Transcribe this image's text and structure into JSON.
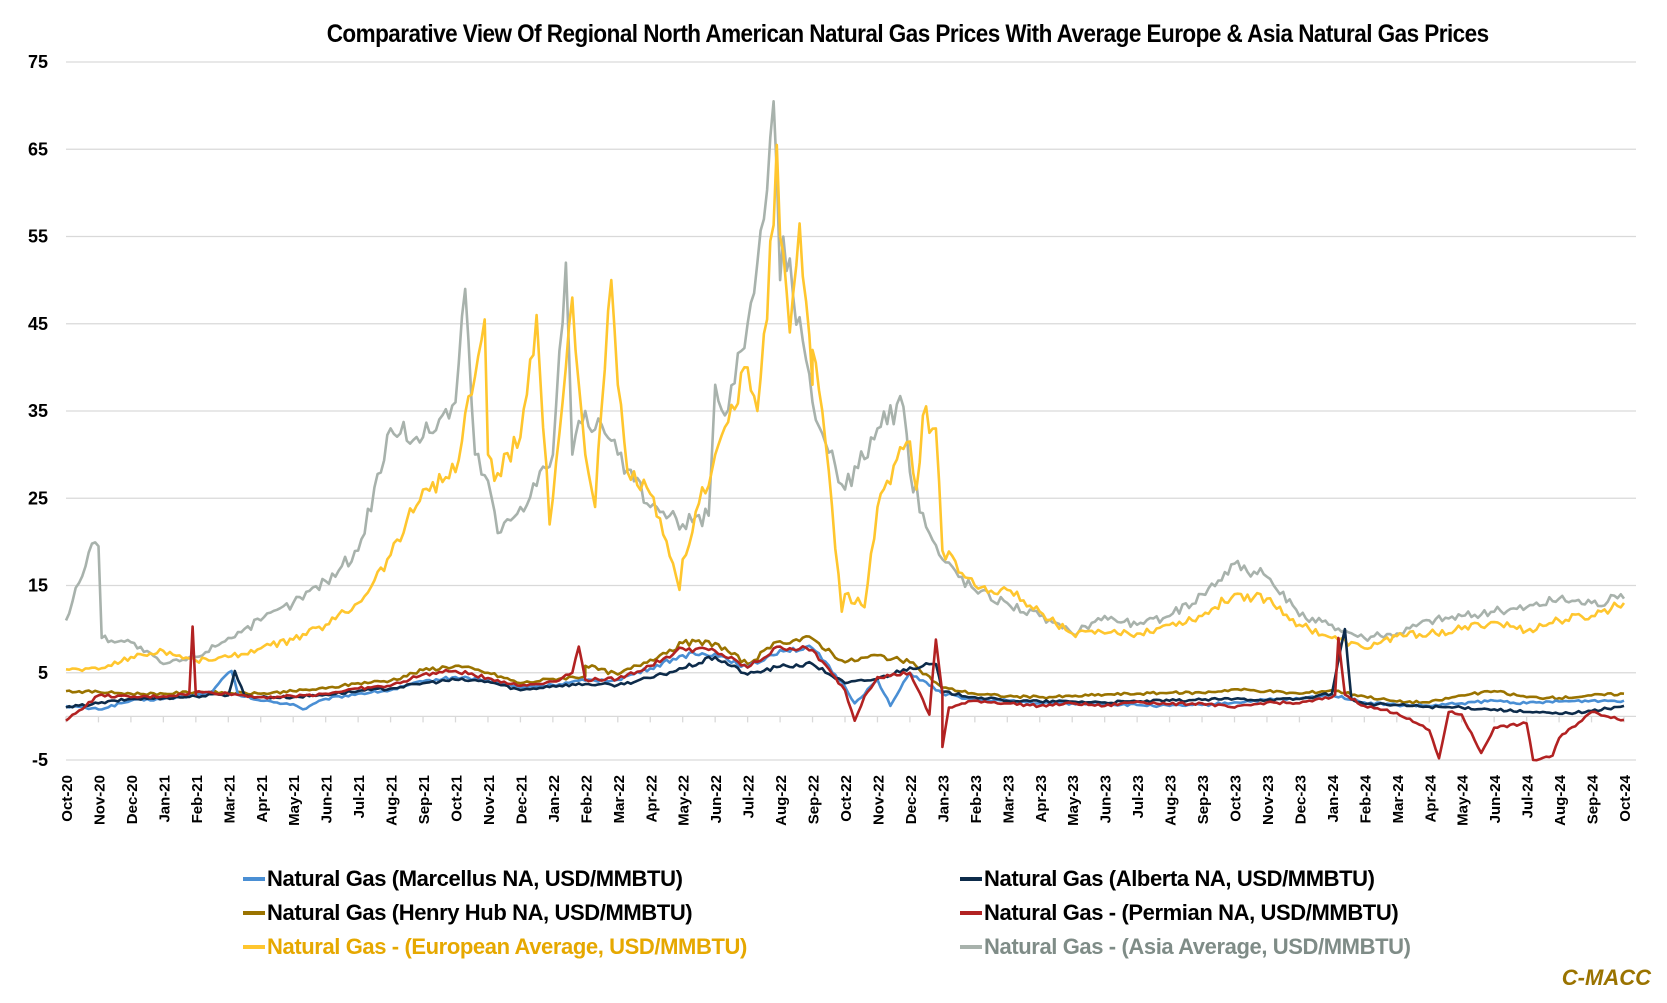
{
  "chart_data": {
    "type": "line",
    "title": "Comparative View Of Regional North American Natural Gas Prices With Average Europe & Asia Natural Gas Prices",
    "xlabel": "",
    "ylabel": "",
    "ylim": [
      -5,
      75
    ],
    "yticks": [
      75,
      65,
      55,
      45,
      35,
      25,
      15,
      5,
      -5
    ],
    "grid": true,
    "legend_position": "bottom",
    "source": "C-MACC",
    "x": [
      "Oct-20",
      "Nov-20",
      "Dec-20",
      "Jan-21",
      "Feb-21",
      "Mar-21",
      "Apr-21",
      "May-21",
      "Jun-21",
      "Jul-21",
      "Aug-21",
      "Sep-21",
      "Oct-21",
      "Nov-21",
      "Dec-21",
      "Jan-22",
      "Feb-22",
      "Mar-22",
      "Apr-22",
      "May-22",
      "Jun-22",
      "Jul-22",
      "Aug-22",
      "Sep-22",
      "Oct-22",
      "Nov-22",
      "Dec-22",
      "Jan-23",
      "Feb-23",
      "Mar-23",
      "Apr-23",
      "May-23",
      "Jun-23",
      "Jul-23",
      "Aug-23",
      "Sep-23",
      "Oct-23",
      "Nov-23",
      "Dec-23",
      "Jan-24",
      "Feb-24",
      "Mar-24",
      "Apr-24",
      "May-24",
      "Jun-24",
      "Jul-24",
      "Aug-24",
      "Sep-24",
      "Oct-24"
    ],
    "series": [
      {
        "name": "Natural Gas (Marcellus NA, USD/MMBTU)",
        "color": "#4a8fd4",
        "text_color": "#000000",
        "values": [
          1.2,
          0.8,
          1.8,
          2.0,
          2.4,
          5.0,
          1.8,
          1.4,
          2.0,
          2.6,
          3.0,
          4.0,
          4.5,
          4.2,
          3.3,
          3.6,
          4.1,
          4.2,
          5.5,
          7.0,
          7.2,
          5.6,
          7.6,
          7.8,
          3.4,
          4.2,
          5.0,
          2.6,
          1.9,
          1.8,
          1.5,
          1.5,
          1.4,
          1.3,
          1.2,
          1.3,
          1.6,
          1.9,
          2.0,
          2.5,
          1.6,
          1.3,
          1.2,
          1.5,
          1.8,
          1.5,
          1.7,
          1.8,
          1.8
        ],
        "extra_points": [
          [
            4.5,
            2.8
          ],
          [
            5.1,
            5.2
          ],
          [
            5.3,
            2.5
          ],
          [
            7.3,
            0.8
          ],
          [
            24.3,
            1.5
          ],
          [
            25.4,
            1.2
          ]
        ]
      },
      {
        "name": "Natural Gas (Alberta NA, USD/MMBTU)",
        "color": "#0d2b4a",
        "text_color": "#000000",
        "values": [
          1.0,
          1.5,
          2.0,
          2.1,
          2.3,
          2.4,
          2.2,
          2.2,
          2.5,
          2.9,
          3.2,
          3.8,
          4.2,
          4.0,
          3.0,
          3.5,
          3.7,
          3.6,
          4.4,
          5.5,
          6.8,
          4.8,
          5.7,
          6.0,
          3.8,
          4.3,
          5.6,
          2.8,
          2.2,
          1.8,
          1.7,
          1.7,
          1.6,
          1.7,
          1.8,
          1.9,
          2.0,
          1.9,
          2.0,
          2.6,
          1.4,
          1.3,
          1.1,
          1.0,
          0.8,
          0.5,
          0.3,
          0.6,
          1.2
        ],
        "extra_points": [
          [
            4.7,
            2.5
          ],
          [
            5.2,
            5.2
          ],
          [
            5.5,
            2.4
          ],
          [
            26.8,
            6.0
          ],
          [
            39.4,
            10.0
          ],
          [
            39.6,
            2.0
          ]
        ]
      },
      {
        "name": "Natural Gas (Henry Hub NA, USD/MMBTU)",
        "color": "#9a7300",
        "text_color": "#000000",
        "values": [
          2.9,
          2.8,
          2.6,
          2.6,
          2.8,
          2.7,
          2.6,
          2.9,
          3.2,
          3.8,
          4.1,
          5.3,
          5.8,
          5.0,
          3.8,
          4.3,
          4.6,
          4.8,
          6.5,
          8.4,
          8.4,
          6.0,
          8.6,
          8.9,
          6.2,
          7.0,
          6.2,
          3.3,
          2.6,
          2.3,
          2.2,
          2.3,
          2.5,
          2.6,
          2.7,
          2.7,
          3.1,
          2.9,
          2.6,
          3.0,
          2.3,
          1.7,
          1.6,
          2.4,
          2.9,
          2.2,
          2.1,
          2.4,
          2.6
        ],
        "extra_points": [
          [
            16.0,
            5.8
          ],
          [
            31.0,
            2.3
          ]
        ]
      },
      {
        "name": "Natural Gas - (Permian NA, USD/MMBTU)",
        "color": "#b22222",
        "text_color": "#000000",
        "values": [
          -0.5,
          2.4,
          2.2,
          2.3,
          2.5,
          2.6,
          2.2,
          2.3,
          2.6,
          3.2,
          3.5,
          4.8,
          5.2,
          4.4,
          3.5,
          4.0,
          4.2,
          4.3,
          5.8,
          7.8,
          7.5,
          5.6,
          8.0,
          7.6,
          3.0,
          4.5,
          5.0,
          2.6,
          1.8,
          1.5,
          1.2,
          1.5,
          1.2,
          1.7,
          1.4,
          1.5,
          1.0,
          1.6,
          1.5,
          2.2,
          1.2,
          0.4,
          -1.6,
          0.2,
          -1.3,
          -0.8,
          -2.5,
          0.5,
          -0.4
        ],
        "extra_points": [
          [
            3.8,
            2.6
          ],
          [
            3.9,
            10.3
          ],
          [
            4.0,
            2.8
          ],
          [
            15.6,
            5.0
          ],
          [
            15.8,
            8.0
          ],
          [
            16.0,
            4.2
          ],
          [
            24.3,
            -0.5
          ],
          [
            24.6,
            2.3
          ],
          [
            26.6,
            0.2
          ],
          [
            26.8,
            8.8
          ],
          [
            27.0,
            -3.5
          ],
          [
            27.2,
            1.0
          ],
          [
            39.1,
            2.5
          ],
          [
            39.2,
            9.0
          ],
          [
            39.4,
            2.5
          ],
          [
            42.3,
            -4.8
          ],
          [
            42.6,
            0.5
          ],
          [
            43.6,
            -4.2
          ],
          [
            45.2,
            -5.0
          ],
          [
            45.8,
            -4.5
          ]
        ]
      },
      {
        "name": "Natural Gas - (European Average, USD/MMBTU)",
        "color": "#ffc62e",
        "text_color": "#e6a800",
        "values": [
          5.4,
          5.4,
          6.8,
          7.5,
          6.4,
          6.8,
          7.8,
          8.8,
          10.5,
          13.0,
          18.5,
          26.0,
          28.0,
          30.0,
          32.0,
          25.0,
          30.0,
          38.0,
          25.5,
          18.0,
          30.0,
          40.0,
          55.0,
          38.0,
          14.0,
          24.0,
          31.5,
          19.0,
          15.0,
          14.5,
          12.0,
          9.5,
          9.5,
          9.5,
          10.5,
          11.5,
          14.0,
          13.5,
          10.5,
          9.0,
          7.8,
          9.2,
          9.5,
          10.0,
          10.8,
          9.8,
          11.0,
          11.5,
          13.0
        ],
        "extra_points": [
          [
            12.9,
            45.5
          ],
          [
            13.2,
            27.0
          ],
          [
            14.5,
            46.0
          ],
          [
            14.9,
            22.0
          ],
          [
            15.6,
            48.0
          ],
          [
            16.3,
            24.0
          ],
          [
            16.8,
            50.0
          ],
          [
            17.3,
            28.0
          ],
          [
            18.9,
            14.5
          ],
          [
            21.3,
            35.0
          ],
          [
            21.6,
            45.5
          ],
          [
            21.9,
            65.5
          ],
          [
            22.3,
            44.0
          ],
          [
            22.6,
            56.5
          ],
          [
            23.0,
            42.0
          ],
          [
            23.3,
            35.0
          ],
          [
            23.9,
            12.0
          ],
          [
            24.6,
            12.5
          ],
          [
            25.3,
            27.0
          ],
          [
            26.2,
            26.0
          ],
          [
            26.4,
            34.5
          ],
          [
            26.8,
            33.0
          ]
        ]
      },
      {
        "name": "Natural Gas - (Asia Average, USD/MMBTU)",
        "color": "#a8b2ac",
        "text_color": "#7f8c87",
        "values": [
          11.0,
          19.5,
          8.5,
          6.0,
          6.8,
          9.0,
          11.0,
          13.0,
          15.5,
          19.0,
          33.0,
          32.0,
          36.0,
          27.0,
          24.0,
          30.0,
          35.0,
          30.0,
          24.0,
          22.0,
          38.0,
          45.0,
          50.0,
          36.0,
          26.0,
          33.0,
          28.0,
          18.0,
          14.5,
          13.0,
          11.5,
          9.5,
          11.5,
          10.5,
          11.5,
          14.0,
          17.5,
          16.0,
          11.5,
          10.5,
          9.0,
          9.5,
          11.0,
          11.5,
          12.0,
          12.5,
          13.5,
          13.0,
          13.5
        ],
        "extra_points": [
          [
            0.8,
            19.8
          ],
          [
            1.1,
            9.0
          ],
          [
            12.3,
            49.0
          ],
          [
            12.6,
            30.0
          ],
          [
            13.3,
            21.0
          ],
          [
            15.4,
            52.0
          ],
          [
            15.6,
            30.0
          ],
          [
            19.8,
            23.0
          ],
          [
            20.3,
            34.5
          ],
          [
            21.5,
            57.0
          ],
          [
            21.8,
            70.5
          ],
          [
            22.1,
            55.0
          ],
          [
            25.8,
            35.5
          ],
          [
            26.6,
            21.0
          ]
        ]
      }
    ]
  }
}
